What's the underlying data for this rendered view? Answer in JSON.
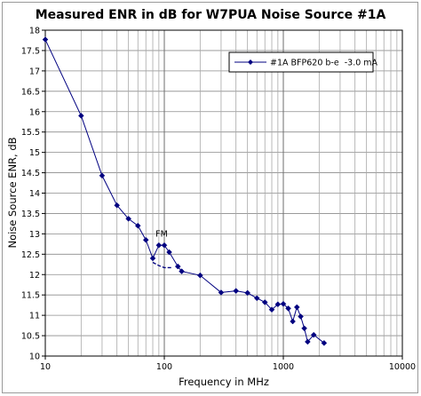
{
  "chart_data": {
    "type": "line",
    "title": "Measured ENR in dB for W7PUA Noise Source #1A",
    "xlabel": "Frequency in MHz",
    "ylabel": "Noise Source ENR, dB",
    "xscale": "log",
    "xlim": [
      10,
      10000
    ],
    "ylim": [
      10,
      18
    ],
    "x_ticks": [
      10,
      100,
      1000,
      10000
    ],
    "y_ticks": [
      10,
      10.5,
      11,
      11.5,
      12,
      12.5,
      13,
      13.5,
      14,
      14.5,
      15,
      15.5,
      16,
      16.5,
      17,
      17.5,
      18
    ],
    "x_tick_labels": [
      "10",
      "100",
      "1000",
      "10000"
    ],
    "y_tick_labels": [
      "10",
      "10.5",
      "11",
      "11.5",
      "12",
      "12.5",
      "13",
      "13.5",
      "14",
      "14.5",
      "15",
      "15.5",
      "16",
      "16.5",
      "17",
      "17.5",
      "18"
    ],
    "grid": true,
    "legend_position": "top-right",
    "series": [
      {
        "name": "#1A BFP620 b-e  -3.0 mA",
        "color": "#000080",
        "marker": "diamond",
        "x": [
          10,
          20,
          30,
          40,
          50,
          60,
          70,
          80,
          90,
          100,
          110,
          130,
          140,
          200,
          300,
          400,
          500,
          600,
          700,
          800,
          900,
          1000,
          1100,
          1200,
          1300,
          1400,
          1500,
          1600,
          1800,
          2200
        ],
        "y": [
          17.77,
          15.9,
          14.43,
          13.7,
          13.37,
          13.2,
          12.85,
          12.4,
          12.72,
          12.72,
          12.55,
          12.2,
          12.08,
          11.98,
          11.56,
          11.6,
          11.55,
          11.42,
          11.32,
          11.14,
          11.27,
          11.28,
          11.17,
          10.85,
          11.2,
          10.97,
          10.68,
          10.35,
          10.52,
          10.32
        ]
      }
    ],
    "annotations": [
      {
        "text": "FM",
        "x": 95,
        "y": 13.0,
        "curve_x": [
          80,
          90,
          100,
          115
        ],
        "curve_y": [
          12.3,
          12.22,
          12.17,
          12.17
        ]
      }
    ]
  }
}
